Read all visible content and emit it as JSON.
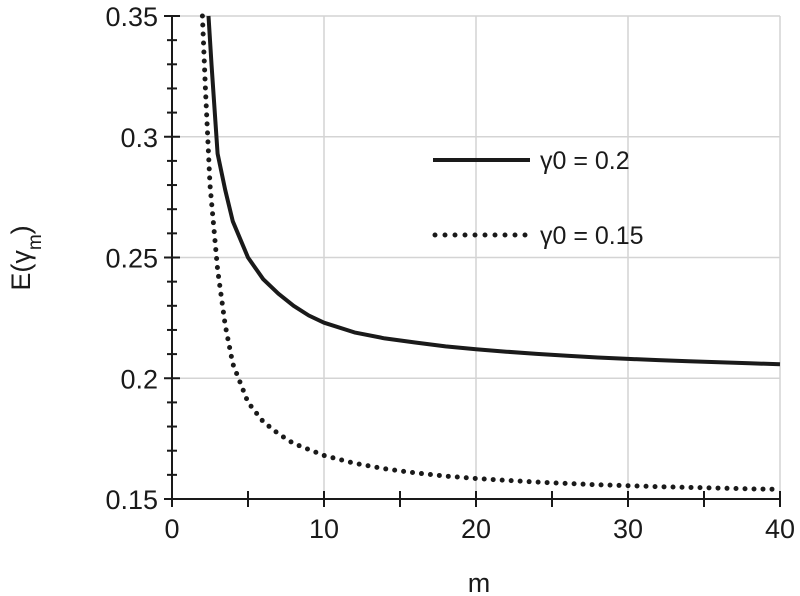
{
  "chart_data": {
    "type": "line",
    "xlabel": "m",
    "ylabel_main": "E(γ",
    "ylabel_sub": "m",
    "ylabel_close": ")",
    "xlim": [
      0,
      40
    ],
    "ylim": [
      0.15,
      0.35
    ],
    "x_ticks": [
      0,
      10,
      20,
      30,
      40
    ],
    "x_tick_labels": [
      "0",
      "10",
      "20",
      "30",
      "40"
    ],
    "y_ticks": [
      0.15,
      0.2,
      0.25,
      0.3,
      0.35
    ],
    "y_tick_labels": [
      "0.15",
      "0.2",
      "0.25",
      "0.3",
      "0.35"
    ],
    "x_grid_minor": [
      5,
      15,
      25,
      35
    ],
    "grid": true,
    "legend_position": "right",
    "series": [
      {
        "name": "γ0 = 0.2",
        "style": "solid",
        "color": "#1a1a1a",
        "x": [
          2.4,
          2.6,
          3,
          3.5,
          4,
          5,
          6,
          7,
          8,
          9,
          10,
          12,
          14,
          16,
          18,
          20,
          22,
          24,
          26,
          28,
          30,
          32,
          34,
          36,
          38,
          40
        ],
        "y": [
          0.35,
          0.33,
          0.293,
          0.278,
          0.265,
          0.25,
          0.241,
          0.235,
          0.23,
          0.226,
          0.223,
          0.219,
          0.2165,
          0.2148,
          0.2132,
          0.212,
          0.211,
          0.2101,
          0.2093,
          0.2086,
          0.208,
          0.2075,
          0.207,
          0.2066,
          0.2062,
          0.2058
        ]
      },
      {
        "name": "γ0 = 0.15",
        "style": "dotted",
        "color": "#1a1a1a",
        "x": [
          2.0,
          2.2,
          2.5,
          3,
          3.5,
          4,
          5,
          6,
          7,
          8,
          9,
          10,
          12,
          14,
          16,
          18,
          20,
          22,
          24,
          26,
          28,
          30,
          32,
          34,
          36,
          38,
          40
        ],
        "y": [
          0.35,
          0.32,
          0.28,
          0.245,
          0.222,
          0.206,
          0.19,
          0.182,
          0.177,
          0.173,
          0.1705,
          0.168,
          0.1648,
          0.1625,
          0.1608,
          0.1595,
          0.1585,
          0.1577,
          0.157,
          0.1564,
          0.1559,
          0.1555,
          0.1551,
          0.1548,
          0.1545,
          0.1542,
          0.154
        ]
      }
    ]
  }
}
